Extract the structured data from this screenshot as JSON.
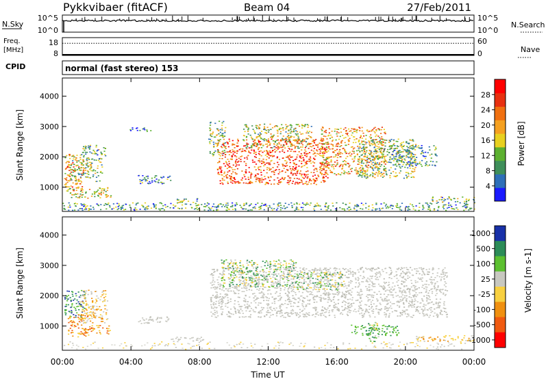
{
  "header": {
    "radar": "Pykkvibaer (fitACF)",
    "beam": "Beam 04",
    "date": "27/Feb/2011"
  },
  "nsky_panel": {
    "left_label": "N.Sky",
    "right_label": "N.Search",
    "left_ticks": [
      "10^5",
      "10^0"
    ],
    "right_ticks": [
      "10^5",
      "10^0"
    ]
  },
  "freq_panel": {
    "label_line1": "Freq.",
    "label_line2": "[MHz]",
    "left_ticks": [
      "18",
      "8"
    ],
    "right_ticks": [
      "60",
      "0"
    ],
    "right_label": "Nave",
    "frequency_mhz": 8.5,
    "nave": 41
  },
  "cpid": {
    "label": "CPID",
    "value": "normal (fast stereo) 153"
  },
  "x_axis": {
    "label": "Time UT",
    "ticks": [
      "00:00",
      "04:00",
      "08:00",
      "12:00",
      "16:00",
      "20:00",
      "00:00"
    ]
  },
  "chart_data": [
    {
      "type": "heatmap",
      "name": "power",
      "ylabel": "Slant Range [km]",
      "yticks": [
        "1000",
        "2000",
        "3000",
        "4000"
      ],
      "ylim": [
        200,
        4600
      ],
      "xlim_hours": [
        0,
        24
      ],
      "colorbar": {
        "label": "Power [dB]",
        "ticks": [
          "4",
          "8",
          "12",
          "16",
          "20",
          "24",
          "28"
        ],
        "range": [
          0,
          32
        ],
        "colors": [
          "#1a1aff",
          "#2e6fb8",
          "#3f8f5a",
          "#5cb030",
          "#e8d020",
          "#f5a020",
          "#f07010",
          "#e83010",
          "#ff0000"
        ]
      },
      "regions": [
        {
          "t0": 0.1,
          "t1": 1.2,
          "r0": 900,
          "r1": 2100,
          "level": 0.65
        },
        {
          "t0": 0.3,
          "t1": 2.3,
          "r0": 1200,
          "r1": 1950,
          "level": 0.4
        },
        {
          "t0": 1.0,
          "t1": 2.5,
          "r0": 1900,
          "r1": 2400,
          "level": 0.35
        },
        {
          "t0": 0.2,
          "t1": 2.8,
          "r0": 650,
          "r1": 1000,
          "level": 0.45
        },
        {
          "t0": 4.4,
          "t1": 6.4,
          "r0": 1100,
          "r1": 1400,
          "level": 0.25
        },
        {
          "t0": 3.9,
          "t1": 5.2,
          "r0": 2850,
          "r1": 3000,
          "level": 0.2
        },
        {
          "t0": 8.5,
          "t1": 9.5,
          "r0": 2050,
          "r1": 3200,
          "level": 0.4
        },
        {
          "t0": 9.0,
          "t1": 15.5,
          "r0": 1100,
          "r1": 2600,
          "level": 0.78
        },
        {
          "t0": 10.5,
          "t1": 14.5,
          "r0": 2300,
          "r1": 3100,
          "level": 0.45
        },
        {
          "t0": 15.0,
          "t1": 18.8,
          "r0": 1400,
          "r1": 3000,
          "level": 0.62
        },
        {
          "t0": 17.2,
          "t1": 20.6,
          "r0": 1300,
          "r1": 2600,
          "level": 0.4
        },
        {
          "t0": 19.0,
          "t1": 21.8,
          "r0": 1700,
          "r1": 2400,
          "level": 0.3
        },
        {
          "t0": 0.0,
          "t1": 24.0,
          "r0": 250,
          "r1": 500,
          "level": 0.3
        },
        {
          "t0": 6.5,
          "t1": 8.0,
          "r0": 500,
          "r1": 650,
          "level": 0.35
        },
        {
          "t0": 21.5,
          "t1": 24.0,
          "r0": 500,
          "r1": 700,
          "level": 0.35
        }
      ]
    },
    {
      "type": "heatmap",
      "name": "velocity",
      "ylabel": "Slant Range [km]",
      "yticks": [
        "1000",
        "2000",
        "3000",
        "4000"
      ],
      "ylim": [
        200,
        4600
      ],
      "xlim_hours": [
        0,
        24
      ],
      "colorbar": {
        "label": "Velocity [m s-1]",
        "ticks": [
          "1000",
          "500",
          "100",
          "25",
          "-25",
          "-100",
          "-500",
          "-1000"
        ],
        "colors": [
          "#1830a8",
          "#2c8c58",
          "#5cc030",
          "#c8c8c0",
          "#f8d040",
          "#f09010",
          "#f05a10",
          "#ff0000"
        ]
      },
      "regions": [
        {
          "t0": 0.1,
          "t1": 1.3,
          "r0": 1300,
          "r1": 2200,
          "v": "blue"
        },
        {
          "t0": 0.3,
          "t1": 1.6,
          "r0": 650,
          "r1": 1400,
          "v": "orange"
        },
        {
          "t0": 1.1,
          "t1": 2.8,
          "r0": 750,
          "r1": 1050,
          "v": "orange"
        },
        {
          "t0": 1.0,
          "t1": 2.6,
          "r0": 1100,
          "r1": 2200,
          "v": "orange_light"
        },
        {
          "t0": 4.4,
          "t1": 6.2,
          "r0": 1100,
          "r1": 1350,
          "v": "gray"
        },
        {
          "t0": 8.6,
          "t1": 22.4,
          "r0": 1300,
          "r1": 2950,
          "v": "gray"
        },
        {
          "t0": 9.2,
          "t1": 13.6,
          "r0": 2300,
          "r1": 3200,
          "v": "green"
        },
        {
          "t0": 13.6,
          "t1": 16.4,
          "r0": 2200,
          "r1": 2800,
          "v": "green"
        },
        {
          "t0": 16.8,
          "t1": 19.6,
          "r0": 700,
          "r1": 1050,
          "v": "green_light"
        },
        {
          "t0": 17.8,
          "t1": 18.5,
          "r0": 450,
          "r1": 1150,
          "v": "green"
        },
        {
          "t0": 6.2,
          "t1": 8.4,
          "r0": 500,
          "r1": 650,
          "v": "gray"
        },
        {
          "t0": 20.5,
          "t1": 24.0,
          "r0": 500,
          "r1": 700,
          "v": "orange_light"
        },
        {
          "t0": 0.0,
          "t1": 24.0,
          "r0": 250,
          "r1": 500,
          "v": "gray_faint"
        }
      ]
    }
  ]
}
